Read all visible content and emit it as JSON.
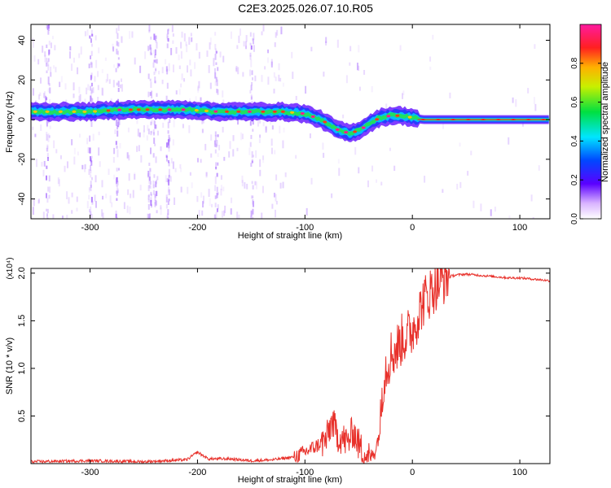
{
  "title": "C2E3.2025.026.07.10.R05",
  "colors": {
    "line": "#e8312b",
    "axis": "#000000"
  },
  "chart_data": [
    {
      "type": "heatmap",
      "xlabel": "Height of straight line (km)",
      "ylabel": "Frequency (Hz)",
      "xlim": [
        -355,
        128
      ],
      "ylim": [
        -50,
        48
      ],
      "x_ticks": [
        -300,
        -200,
        -100,
        0,
        100
      ],
      "y_ticks": [
        -40,
        -20,
        0,
        20,
        40
      ],
      "colorbar": {
        "label": "Normalized spectral amplitude",
        "range": [
          0,
          1
        ],
        "ticks": [
          "0.0",
          "0.2",
          "0.4",
          "0.6",
          "0.8"
        ],
        "tick_values": [
          0,
          0.2,
          0.4,
          0.6,
          0.8
        ],
        "colormap": "rainbow-white-to-magenta"
      },
      "ridge": {
        "x": [
          -355,
          -330,
          -300,
          -270,
          -240,
          -210,
          -180,
          -150,
          -120,
          -100,
          -85,
          -70,
          -58,
          -48,
          -40,
          -30,
          -20,
          -10,
          0,
          10,
          50,
          90,
          128
        ],
        "frequency": [
          4,
          4,
          4,
          5,
          5,
          5,
          4,
          4,
          4,
          3,
          0,
          -5,
          -7,
          -5,
          -2,
          1,
          2,
          2,
          1,
          0,
          0,
          0,
          0
        ]
      }
    },
    {
      "type": "line",
      "xlabel": "Height of straight line (km)",
      "ylabel": "SNR (10 * v/v)",
      "y_scale_note": "(x10⁴)",
      "xlim": [
        -355,
        128
      ],
      "ylim": [
        0,
        2.05
      ],
      "x_ticks": [
        -300,
        -200,
        -100,
        0,
        100
      ],
      "y_ticks": [
        0.5,
        1.0,
        1.5,
        2.0
      ],
      "y_tick_labels": [
        "0.5",
        "1.0",
        "1.5",
        "2.0"
      ],
      "series": [
        {
          "x": [
            -355,
            -300,
            -250,
            -210,
            -200,
            -190,
            -170,
            -150,
            -130,
            -110,
            -100,
            -90,
            -80,
            -75,
            -70,
            -60,
            -55,
            -50,
            -45,
            -40,
            -35,
            -30,
            -28,
            -25,
            -20,
            -15,
            -10,
            -5,
            0,
            5,
            10,
            20,
            30,
            40,
            50,
            60,
            70,
            80,
            90,
            100,
            110,
            120,
            128
          ],
          "y": [
            0.02,
            0.03,
            0.02,
            0.04,
            0.12,
            0.05,
            0.05,
            0.03,
            0.04,
            0.07,
            0.12,
            0.18,
            0.25,
            0.45,
            0.3,
            0.22,
            0.35,
            0.2,
            0.1,
            0.06,
            0.12,
            0.35,
            0.8,
            1.0,
            1.15,
            1.2,
            1.3,
            1.35,
            1.4,
            1.55,
            1.7,
            1.85,
            1.95,
            1.98,
            1.99,
            1.98,
            1.97,
            1.96,
            1.95,
            1.95,
            1.94,
            1.93,
            1.92
          ]
        }
      ]
    }
  ]
}
